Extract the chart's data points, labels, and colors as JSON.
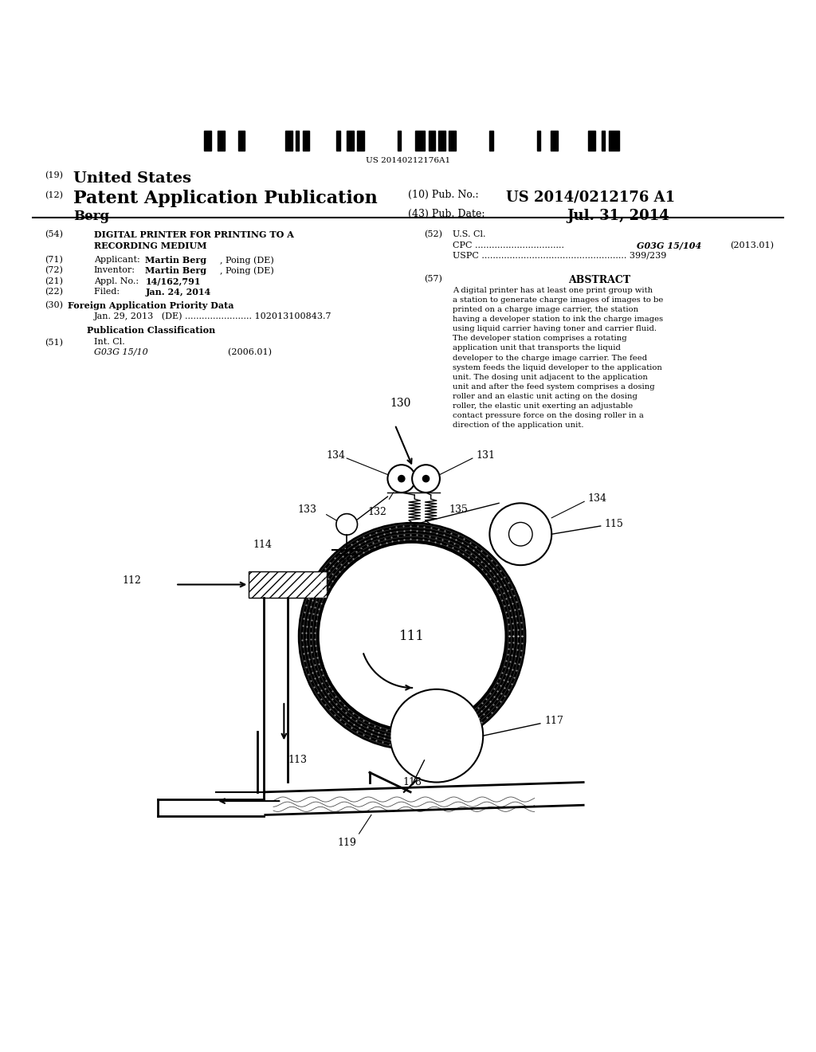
{
  "bg_color": "#ffffff",
  "barcode_text": "US 20140212176A1",
  "title_19": "(19)",
  "title_19_text": "United States",
  "title_12": "(12)",
  "title_12_text": "Patent Application Publication",
  "title_10": "(10) Pub. No.:",
  "title_10_val": "US 2014/0212176 A1",
  "inventor": "Berg",
  "pub_date_label": "(43) Pub. Date:",
  "pub_date_val": "Jul. 31, 2014",
  "field_54": "(54)",
  "field_71": "(71)",
  "field_72": "(72)",
  "field_21": "(21)",
  "field_22": "(22)",
  "field_30": "(30)",
  "field_30_text": "Foreign Application Priority Data",
  "field_30_detail": "Jan. 29, 2013   (DE) ........................ 102013100843.7",
  "field_pub_class": "Publication Classification",
  "field_51": "(51)",
  "field_52": "(52)",
  "field_57": "(57)",
  "field_57_title": "ABSTRACT",
  "field_57_text": "A digital printer has at least one print group with a station to generate charge images of images to be printed on a charge image carrier, the station having a developer station to ink the charge images using liquid carrier having toner and carrier fluid. The developer station comprises a rotating application unit that transports the liquid developer to the charge image carrier. The feed system feeds the liquid developer to the application unit. The dosing unit adjacent to the application unit and after the feed system comprises a dosing roller and an elastic unit acting on the dosing roller, the elastic unit exerting an adjustable contact pressure force on the dosing roller in a direction of the application unit.",
  "abstract_line_chars": 52
}
